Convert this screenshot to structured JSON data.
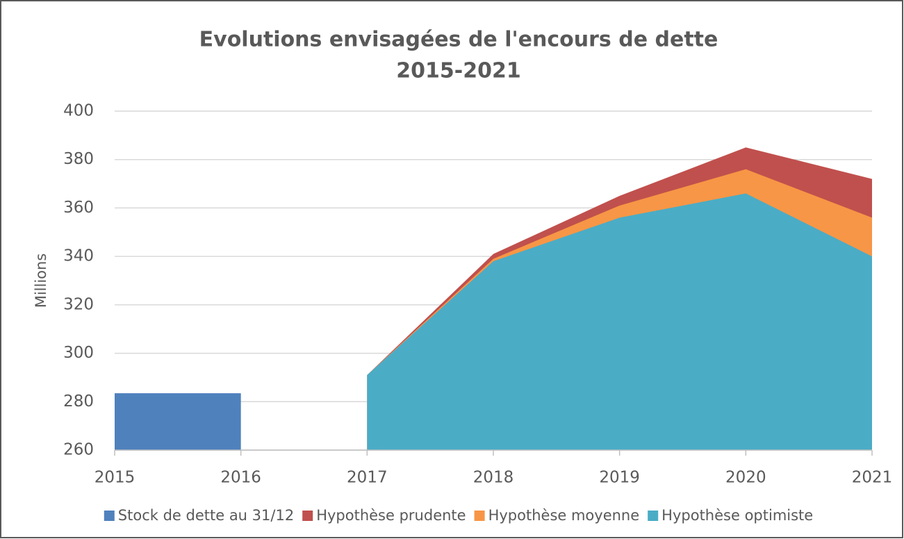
{
  "chart_data": {
    "type": "area",
    "title": "Evolutions envisagées de l'encours de dette",
    "subtitle": "2015-2021",
    "y_label": "Millions",
    "x": [
      2015,
      2016,
      2017,
      2018,
      2019,
      2020,
      2021
    ],
    "xlim": [
      2015,
      2021
    ],
    "xticks": [
      2015,
      2016,
      2017,
      2018,
      2019,
      2020,
      2021
    ],
    "ylim": [
      260,
      400
    ],
    "yticks": [
      260,
      280,
      300,
      320,
      340,
      360,
      380,
      400
    ],
    "grid": true,
    "legend": "bottom",
    "series": [
      {
        "name": "Stock de dette au 31/12",
        "color": "#4f81bd",
        "values": [
          283.5,
          283.5,
          null,
          null,
          null,
          null,
          null
        ]
      },
      {
        "name": "Hypothèse prudente",
        "color": "#c0504d",
        "values": [
          null,
          null,
          291,
          341,
          365,
          385,
          372
        ]
      },
      {
        "name": "Hypothèse moyenne",
        "color": "#f79646",
        "values": [
          null,
          null,
          291,
          339,
          361,
          376,
          356
        ]
      },
      {
        "name": "Hypothèse optimiste",
        "color": "#4bacc6",
        "values": [
          null,
          null,
          291,
          338,
          356,
          366,
          340
        ]
      }
    ]
  }
}
